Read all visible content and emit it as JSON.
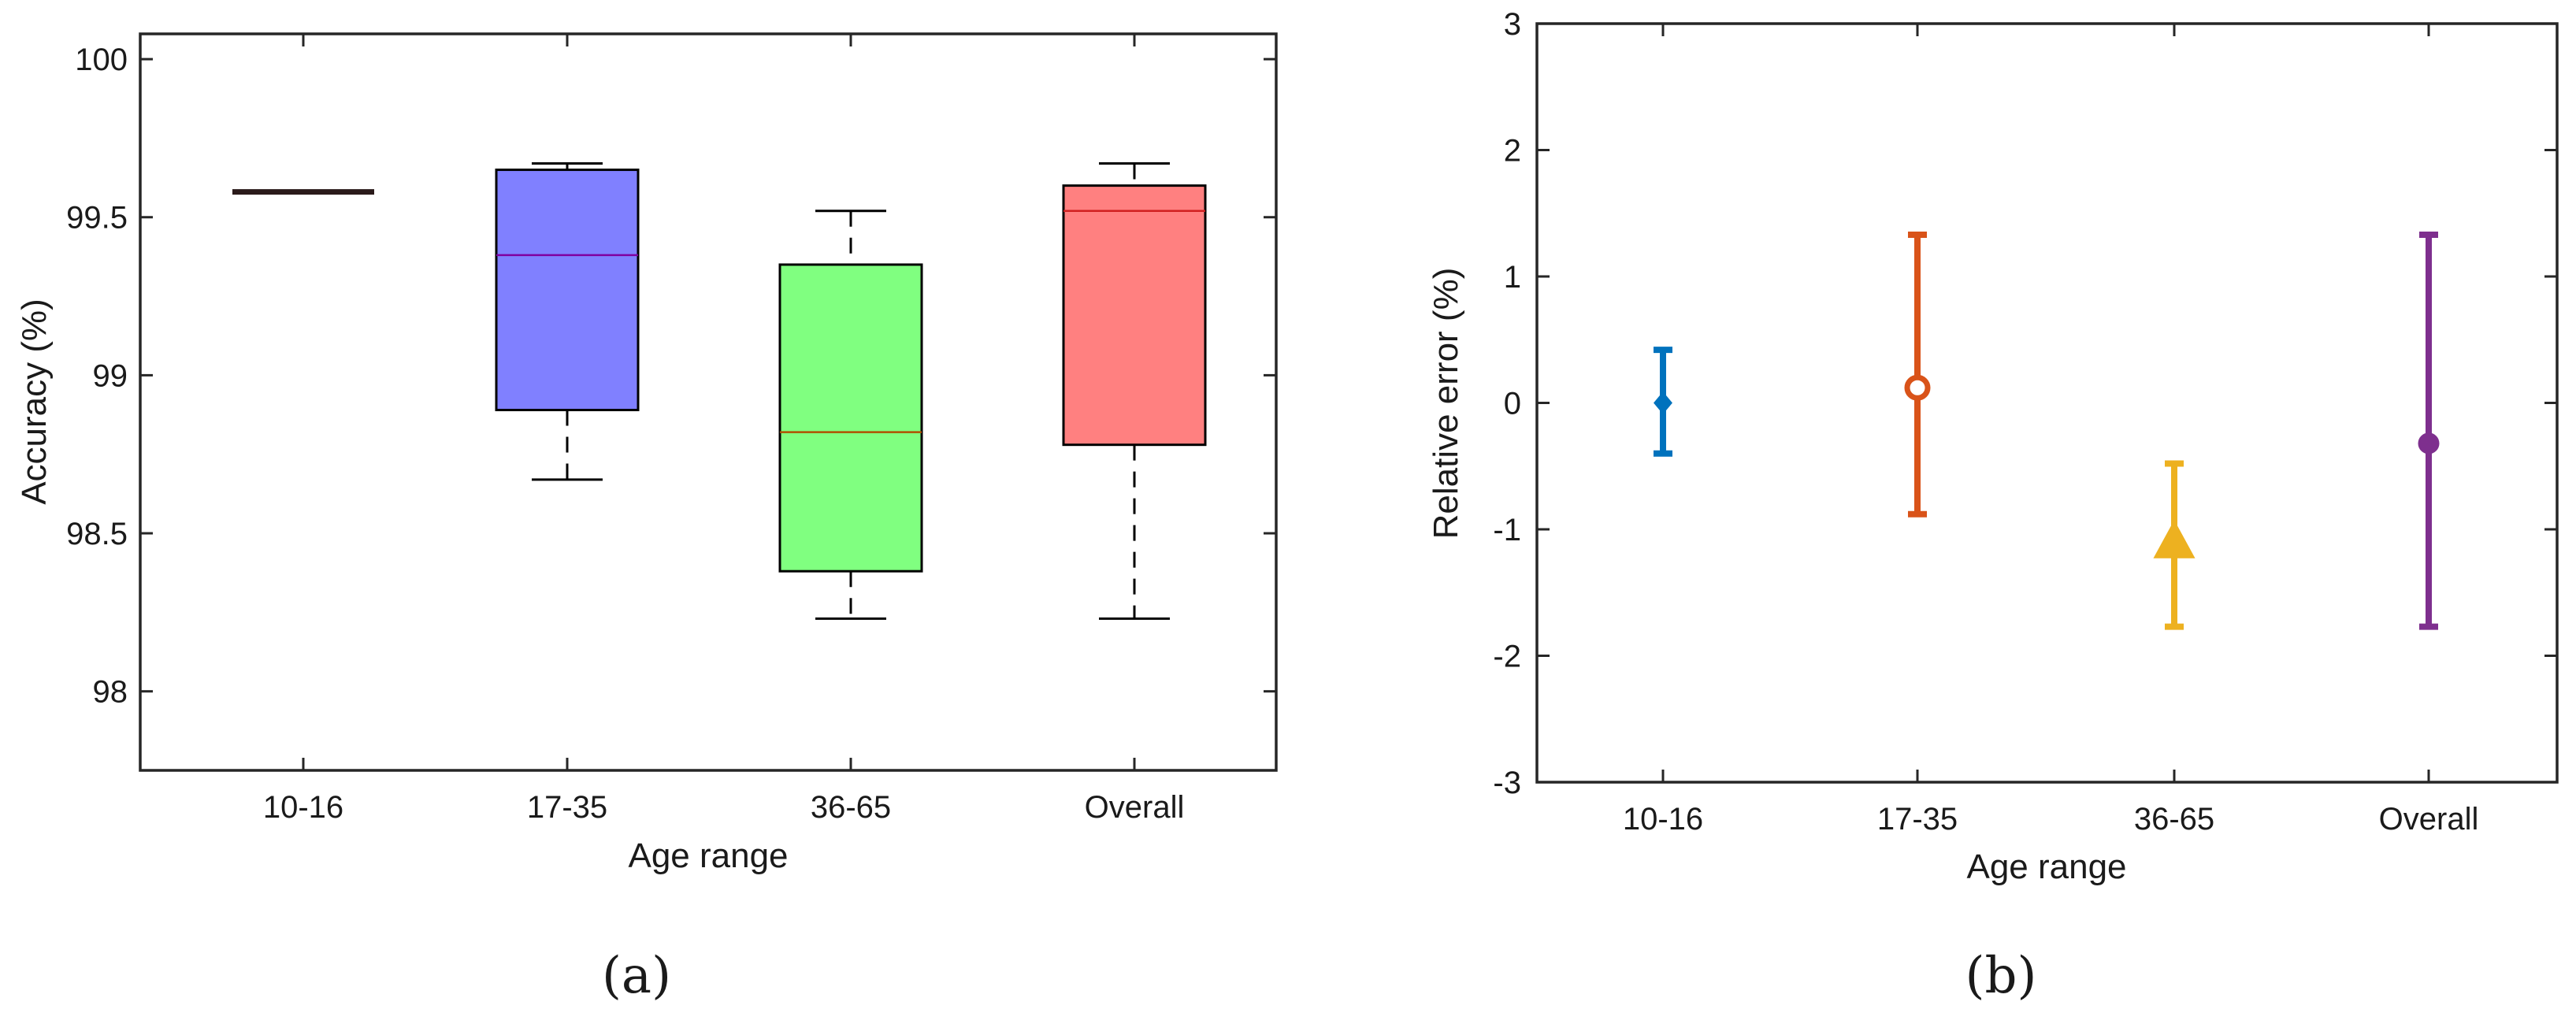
{
  "chart_data": [
    {
      "type": "box",
      "panel_label": "(a)",
      "xlabel": "Age range",
      "ylabel": "Accuracy (%)",
      "ylim": [
        97.75,
        100.08
      ],
      "yticks": [
        98,
        98.5,
        99,
        99.5,
        100
      ],
      "ytick_labels": [
        "98",
        "98.5",
        "99",
        "99.5",
        "100"
      ],
      "categories": [
        "10-16",
        "17-35",
        "36-65",
        "Overall"
      ],
      "boxes": [
        {
          "category": "10-16",
          "whisker_low": 99.58,
          "q1": 99.58,
          "median": 99.58,
          "q3": 99.58,
          "whisker_high": 99.58,
          "fill": "#2a1a1a"
        },
        {
          "category": "17-35",
          "whisker_low": 98.67,
          "q1": 98.89,
          "median": 99.38,
          "q3": 99.65,
          "whisker_high": 99.67,
          "fill": "#8080ff"
        },
        {
          "category": "36-65",
          "whisker_low": 98.23,
          "q1": 98.38,
          "median": 98.82,
          "q3": 99.35,
          "whisker_high": 99.52,
          "fill": "#80ff80"
        },
        {
          "category": "Overall",
          "whisker_low": 98.23,
          "q1": 98.78,
          "median": 99.52,
          "q3": 99.6,
          "whisker_high": 99.67,
          "fill": "#ff8080"
        }
      ],
      "median_colors": [
        "#2a1a1a",
        "#8000a0",
        "#b05000",
        "#d02020"
      ]
    },
    {
      "type": "errorbar",
      "panel_label": "(b)",
      "xlabel": "Age range",
      "ylabel": "Relative error (%)",
      "ylim": [
        -3,
        3
      ],
      "yticks": [
        -3,
        -2,
        -1,
        0,
        1,
        2,
        3
      ],
      "ytick_labels": [
        "-3",
        "-2",
        "-1",
        "0",
        "1",
        "2",
        "3"
      ],
      "categories": [
        "10-16",
        "17-35",
        "36-65",
        "Overall"
      ],
      "series": [
        {
          "category": "10-16",
          "value": 0.0,
          "low": -0.4,
          "high": 0.42,
          "marker": "diamond",
          "color": "#0072bd"
        },
        {
          "category": "17-35",
          "value": 0.12,
          "low": -0.88,
          "high": 1.33,
          "marker": "circle-open",
          "color": "#d95319"
        },
        {
          "category": "36-65",
          "value": -1.12,
          "low": -1.77,
          "high": -0.48,
          "marker": "triangle",
          "color": "#edb120"
        },
        {
          "category": "Overall",
          "value": -0.32,
          "low": -1.77,
          "high": 1.33,
          "marker": "circle",
          "color": "#7e2f8e"
        }
      ]
    }
  ]
}
